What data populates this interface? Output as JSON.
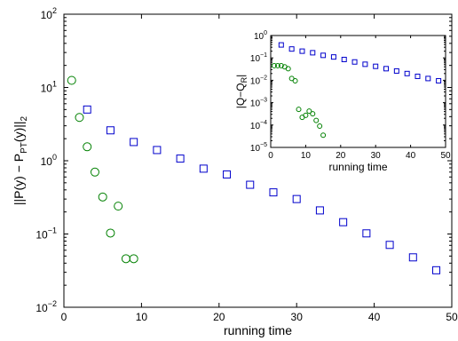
{
  "chart_data": [
    {
      "type": "scatter",
      "x_scale": "linear",
      "y_scale": "log",
      "xlim": [
        0,
        50
      ],
      "ylim": [
        0.01,
        100
      ],
      "xlabel": "running time",
      "ylabel": "||P(y) − P_PT(y)||_2",
      "ylabel_parts": {
        "main": "||P(y) − P",
        "sub": "PT",
        "mid": "(y)||",
        "sub2": "2"
      },
      "xticks": [
        "0",
        "10",
        "20",
        "30",
        "40",
        "50"
      ],
      "yticks": [
        {
          "base": "10",
          "exp": "−2",
          "value": 0.01
        },
        {
          "base": "10",
          "exp": "−1",
          "value": 0.1
        },
        {
          "base": "10",
          "exp": "0",
          "value": 1
        },
        {
          "base": "10",
          "exp": "1",
          "value": 10
        },
        {
          "base": "10",
          "exp": "2",
          "value": 100
        }
      ],
      "grid": false,
      "series": [
        {
          "marker": "square",
          "color": "#0000cc",
          "points": [
            [
              3,
              5.0
            ],
            [
              6,
              2.6
            ],
            [
              9,
              1.8
            ],
            [
              12,
              1.4
            ],
            [
              15,
              1.07
            ],
            [
              18,
              0.78
            ],
            [
              21,
              0.65
            ],
            [
              24,
              0.47
            ],
            [
              27,
              0.37
            ],
            [
              30,
              0.3
            ],
            [
              33,
              0.21
            ],
            [
              36,
              0.145
            ],
            [
              39,
              0.102
            ],
            [
              42,
              0.071
            ],
            [
              45,
              0.048
            ],
            [
              48,
              0.032
            ]
          ]
        },
        {
          "marker": "circle",
          "color": "#008000",
          "points": [
            [
              1,
              12.5
            ],
            [
              2,
              3.9
            ],
            [
              3,
              1.55
            ],
            [
              4,
              0.7
            ],
            [
              5,
              0.32
            ],
            [
              6,
              0.103
            ],
            [
              7,
              0.24
            ],
            [
              8,
              0.046
            ],
            [
              9,
              0.046
            ]
          ]
        }
      ]
    },
    {
      "type": "scatter",
      "x_scale": "linear",
      "y_scale": "log",
      "xlim": [
        0,
        50
      ],
      "ylim": [
        1e-05,
        1
      ],
      "xlabel": "running time",
      "ylabel": "|Q−Q_R|",
      "ylabel_parts": {
        "main": "|Q−Q",
        "sub": "R",
        "end": "|"
      },
      "xticks": [
        "0",
        "10",
        "20",
        "30",
        "40",
        "50"
      ],
      "yticks": [
        {
          "base": "10",
          "exp": "−5",
          "value": 1e-05
        },
        {
          "base": "10",
          "exp": "−4",
          "value": 0.0001
        },
        {
          "base": "10",
          "exp": "−3",
          "value": 0.001
        },
        {
          "base": "10",
          "exp": "−2",
          "value": 0.01
        },
        {
          "base": "10",
          "exp": "−1",
          "value": 0.1
        },
        {
          "base": "10",
          "exp": "0",
          "value": 1
        }
      ],
      "grid": false,
      "legend": "none",
      "placement": "inset-top-right",
      "series": [
        {
          "marker": "square",
          "color": "#0000cc",
          "points": [
            [
              3,
              0.38
            ],
            [
              6,
              0.25
            ],
            [
              9,
              0.2
            ],
            [
              12,
              0.17
            ],
            [
              15,
              0.13
            ],
            [
              18,
              0.11
            ],
            [
              21,
              0.085
            ],
            [
              24,
              0.066
            ],
            [
              27,
              0.052
            ],
            [
              30,
              0.042
            ],
            [
              33,
              0.033
            ],
            [
              36,
              0.026
            ],
            [
              39,
              0.02
            ],
            [
              42,
              0.015
            ],
            [
              45,
              0.012
            ],
            [
              48,
              0.0095
            ],
            [
              51,
              0.0072
            ]
          ]
        },
        {
          "marker": "circle",
          "color": "#008000",
          "points": [
            [
              1,
              0.045
            ],
            [
              2,
              0.045
            ],
            [
              3,
              0.045
            ],
            [
              4,
              0.04
            ],
            [
              5,
              0.033
            ],
            [
              6,
              0.012
            ],
            [
              7,
              0.0095
            ],
            [
              8,
              0.0005
            ],
            [
              9,
              0.00022
            ],
            [
              10,
              0.00027
            ],
            [
              11,
              0.00042
            ],
            [
              12,
              0.00032
            ],
            [
              13,
              0.00016
            ],
            [
              14,
              9e-05
            ],
            [
              15,
              3.5e-05
            ]
          ]
        }
      ]
    }
  ]
}
